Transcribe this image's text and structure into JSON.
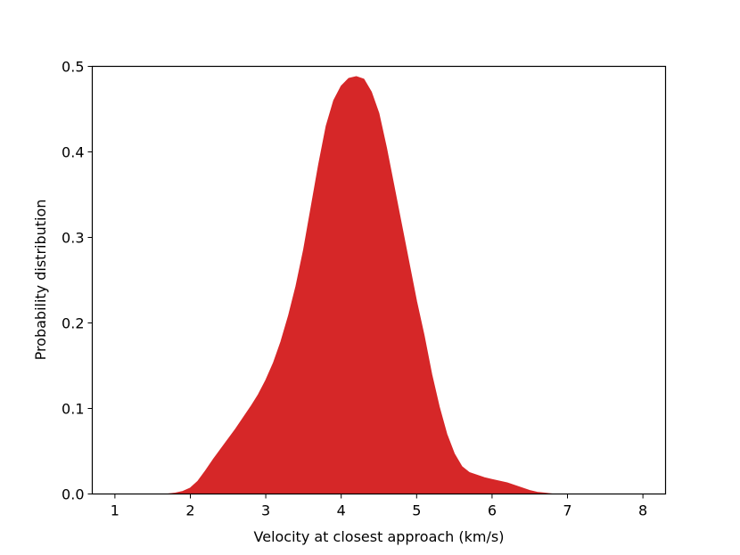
{
  "chart_data": {
    "type": "area",
    "title": "",
    "xlabel": "Velocity at closest approach (km/s)",
    "ylabel": "Probability distribution",
    "xlim": [
      0.7,
      8.3
    ],
    "ylim": [
      0.0,
      0.5
    ],
    "xticks": [
      1,
      2,
      3,
      4,
      5,
      6,
      7,
      8
    ],
    "yticks": [
      0.0,
      0.1,
      0.2,
      0.3,
      0.4,
      0.5
    ],
    "xtick_labels": [
      "1",
      "2",
      "3",
      "4",
      "5",
      "6",
      "7",
      "8"
    ],
    "ytick_labels": [
      "0.0",
      "0.1",
      "0.2",
      "0.3",
      "0.4",
      "0.5"
    ],
    "grid": false,
    "legend": "none",
    "fill_color": "#d62728",
    "series": [
      {
        "x": [
          1.0,
          1.5,
          1.7,
          1.8,
          1.9,
          2.0,
          2.1,
          2.2,
          2.3,
          2.4,
          2.5,
          2.6,
          2.7,
          2.8,
          2.9,
          3.0,
          3.1,
          3.2,
          3.3,
          3.4,
          3.5,
          3.6,
          3.7,
          3.8,
          3.9,
          4.0,
          4.1,
          4.2,
          4.3,
          4.4,
          4.5,
          4.6,
          4.7,
          4.8,
          4.9,
          5.0,
          5.1,
          5.2,
          5.3,
          5.4,
          5.5,
          5.6,
          5.7,
          5.8,
          5.9,
          6.0,
          6.1,
          6.2,
          6.3,
          6.4,
          6.5,
          6.6,
          6.7,
          6.8,
          6.9,
          7.0,
          7.5,
          8.0
        ],
        "y": [
          0.0,
          0.0,
          0.0,
          0.001,
          0.003,
          0.007,
          0.015,
          0.027,
          0.04,
          0.052,
          0.064,
          0.076,
          0.089,
          0.102,
          0.116,
          0.133,
          0.153,
          0.178,
          0.208,
          0.243,
          0.285,
          0.335,
          0.385,
          0.43,
          0.46,
          0.477,
          0.486,
          0.488,
          0.485,
          0.47,
          0.445,
          0.405,
          0.36,
          0.315,
          0.27,
          0.225,
          0.185,
          0.14,
          0.102,
          0.07,
          0.047,
          0.032,
          0.025,
          0.022,
          0.019,
          0.017,
          0.015,
          0.013,
          0.01,
          0.007,
          0.004,
          0.002,
          0.001,
          0.0,
          0.0,
          0.0,
          0.0,
          0.0
        ]
      }
    ]
  }
}
